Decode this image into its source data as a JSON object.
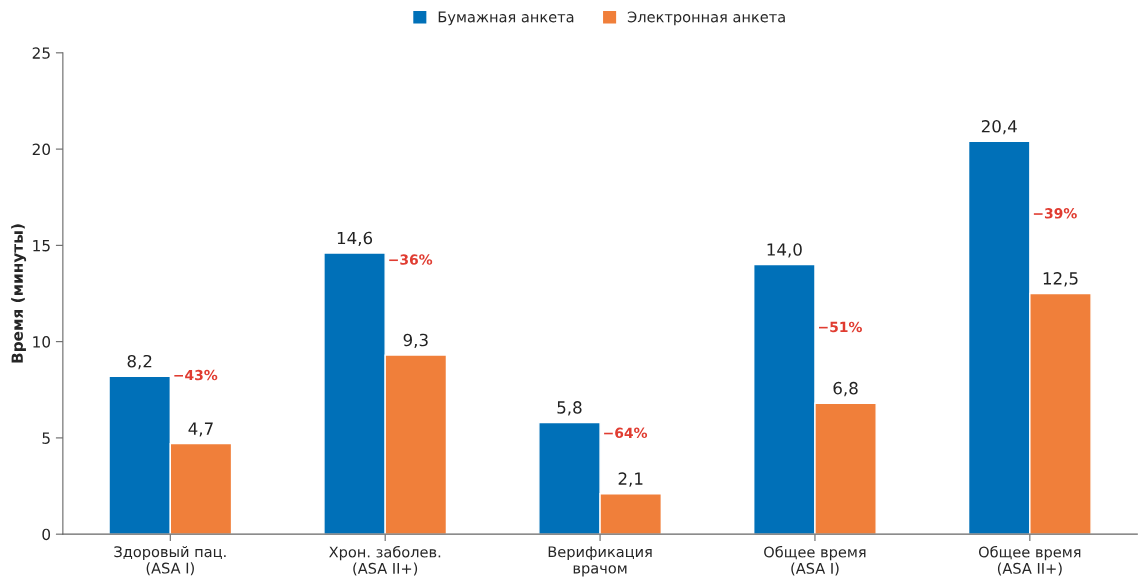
{
  "chart_data": {
    "type": "bar",
    "ylabel": "Время (минуты)",
    "categories": [
      "Здоровый пац.\n(ASA I)",
      "Хрон. заболев.\n(ASA II+)",
      "Верификация\nврачом",
      "Общее время\n(ASA I)",
      "Общее время\n(ASA II+)"
    ],
    "series": [
      {
        "name": "Бумажная анкета",
        "color": "#0070b8",
        "values": [
          8.2,
          14.6,
          5.8,
          14.0,
          20.4
        ],
        "value_labels": [
          "8,2",
          "14,6",
          "5,8",
          "14,0",
          "20,4"
        ]
      },
      {
        "name": "Электронная анкета",
        "color": "#f07f3a",
        "values": [
          4.7,
          9.3,
          2.1,
          6.8,
          12.5
        ],
        "value_labels": [
          "4,7",
          "9,3",
          "2,1",
          "6,8",
          "12,5"
        ]
      }
    ],
    "annotations": [
      {
        "text": "−43%",
        "x": "Здоровый пац.\n(ASA I)",
        "y": 8.2
      },
      {
        "text": "−36%",
        "x": "Хрон. заболев.\n(ASA II+)",
        "y": 14.2
      },
      {
        "text": "−64%",
        "x": "Верификация\nврачом",
        "y": 5.2
      },
      {
        "text": "−51%",
        "x": "Общее время\n(ASA I)",
        "y": 10.7
      },
      {
        "text": "−39%",
        "x": "Общее время\n(ASA II+)",
        "y": 16.6
      }
    ],
    "ylim": [
      0,
      25
    ],
    "yticks": [
      0,
      5,
      10,
      15,
      20,
      25
    ],
    "grid": false,
    "legend": "top"
  }
}
